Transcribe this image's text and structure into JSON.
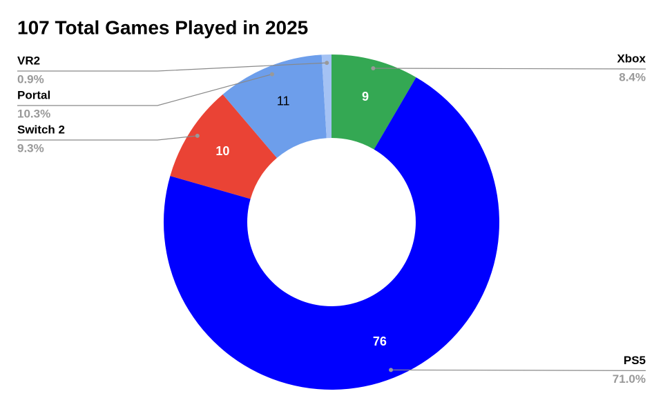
{
  "chart_data": {
    "type": "donut",
    "title": "107 Total Games Played in 2025",
    "categories": [
      "Xbox",
      "PS5",
      "Switch 2",
      "Portal",
      "VR2"
    ],
    "values": [
      9,
      76,
      10,
      11,
      1
    ],
    "percent_labels": [
      "8.4%",
      "71.0%",
      "9.3%",
      "10.3%",
      "0.9%"
    ],
    "colors": [
      "#34a853",
      "#0000ff",
      "#ea4335",
      "#6d9eeb",
      "#a4c2f4"
    ]
  }
}
